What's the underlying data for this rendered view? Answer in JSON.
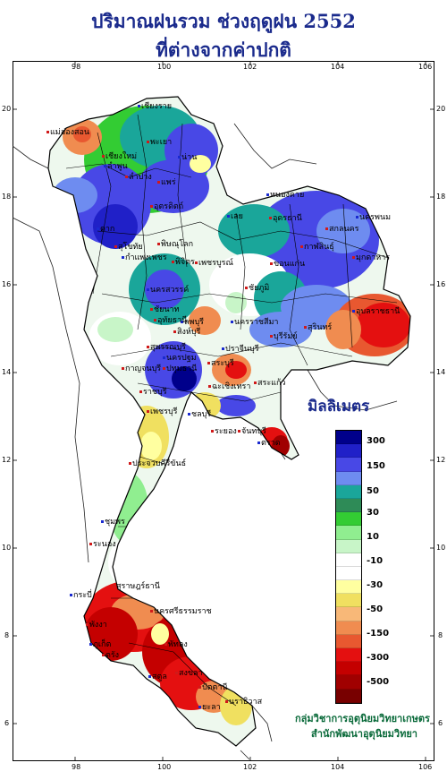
{
  "title_line1": "ปริมาณฝนรวม ช่วงฤดูฝน 2552",
  "title_line2": "ที่ต่างจากค่าปกติ",
  "longitude_ticks": [
    "98",
    "100",
    "102",
    "104",
    "106"
  ],
  "latitude_ticks": [
    "20",
    "18",
    "16",
    "14",
    "12",
    "10",
    "8",
    "6"
  ],
  "legend": {
    "unit": "มิลลิเมตร",
    "colors": [
      "#00008b",
      "#2020c8",
      "#4848e6",
      "#6e8cf0",
      "#1aa69a",
      "#2e8b57",
      "#33cc33",
      "#90ee90",
      "#c8f5c8",
      "#ffffff",
      "#ffffff",
      "#ffffa0",
      "#f0e060",
      "#f8b878",
      "#f08c50",
      "#e85830",
      "#e41010",
      "#c40000",
      "#a00000",
      "#780000"
    ],
    "labels": [
      "300",
      "150",
      "50",
      "30",
      "10",
      "-10",
      "-30",
      "-50",
      "-150",
      "-300",
      "-500"
    ]
  },
  "credit_line1": "กลุ่มวิชาการอุตุนิยมวิทยาเกษตร",
  "credit_line2": "สำนักพัฒนาอุตุนิยมวิทยา",
  "towns": [
    "เชียงราย",
    "แม่ฮ่องสอน",
    "เชียงใหม่",
    "ลำพูน",
    "ลำปาง",
    "พะเยา",
    "น่าน",
    "แพร่",
    "อุตรดิตถ์",
    "ตาก",
    "สุโขทัย",
    "พิษณุโลก",
    "หนองคาย",
    "อุดรธานี",
    "สกลนคร",
    "นครพนม",
    "มุกดาหาร",
    "กาฬสินธุ์",
    "เลย",
    "ขอนแก่น",
    "ชัยภูมิ",
    "กำแพงเพชร",
    "พิจิตร",
    "เพชรบูรณ์",
    "นครสวรรค์",
    "อุทัยธานี",
    "ชัยนาท",
    "ลพบุรี",
    "สิงห์บุรี",
    "สุพรรณบุรี",
    "นครราชสีมา",
    "บุรีรัมย์",
    "สุรินทร์",
    "อุบลราชธานี",
    "กาญจนบุรี",
    "ราชบุรี",
    "นครปฐม",
    "ปทุมธานี",
    "สระบุรี",
    "ปราจีนบุรี",
    "สระแก้ว",
    "ฉะเชิงเทรา",
    "ชลบุรี",
    "ระยอง",
    "จันทบุรี",
    "ตราด",
    "เพชรบุรี",
    "ประจวบคีรีขันธ์",
    "ชุมพร",
    "ระนอง",
    "สุราษฎร์ธานี",
    "กระบี่",
    "นครศรีธรรมราช",
    "พังงา",
    "ภูเก็ต",
    "ตรัง",
    "พัทลุง",
    "สตูล",
    "สงขลา",
    "ปัตตานี",
    "ยะลา",
    "นราธิวาส"
  ]
}
